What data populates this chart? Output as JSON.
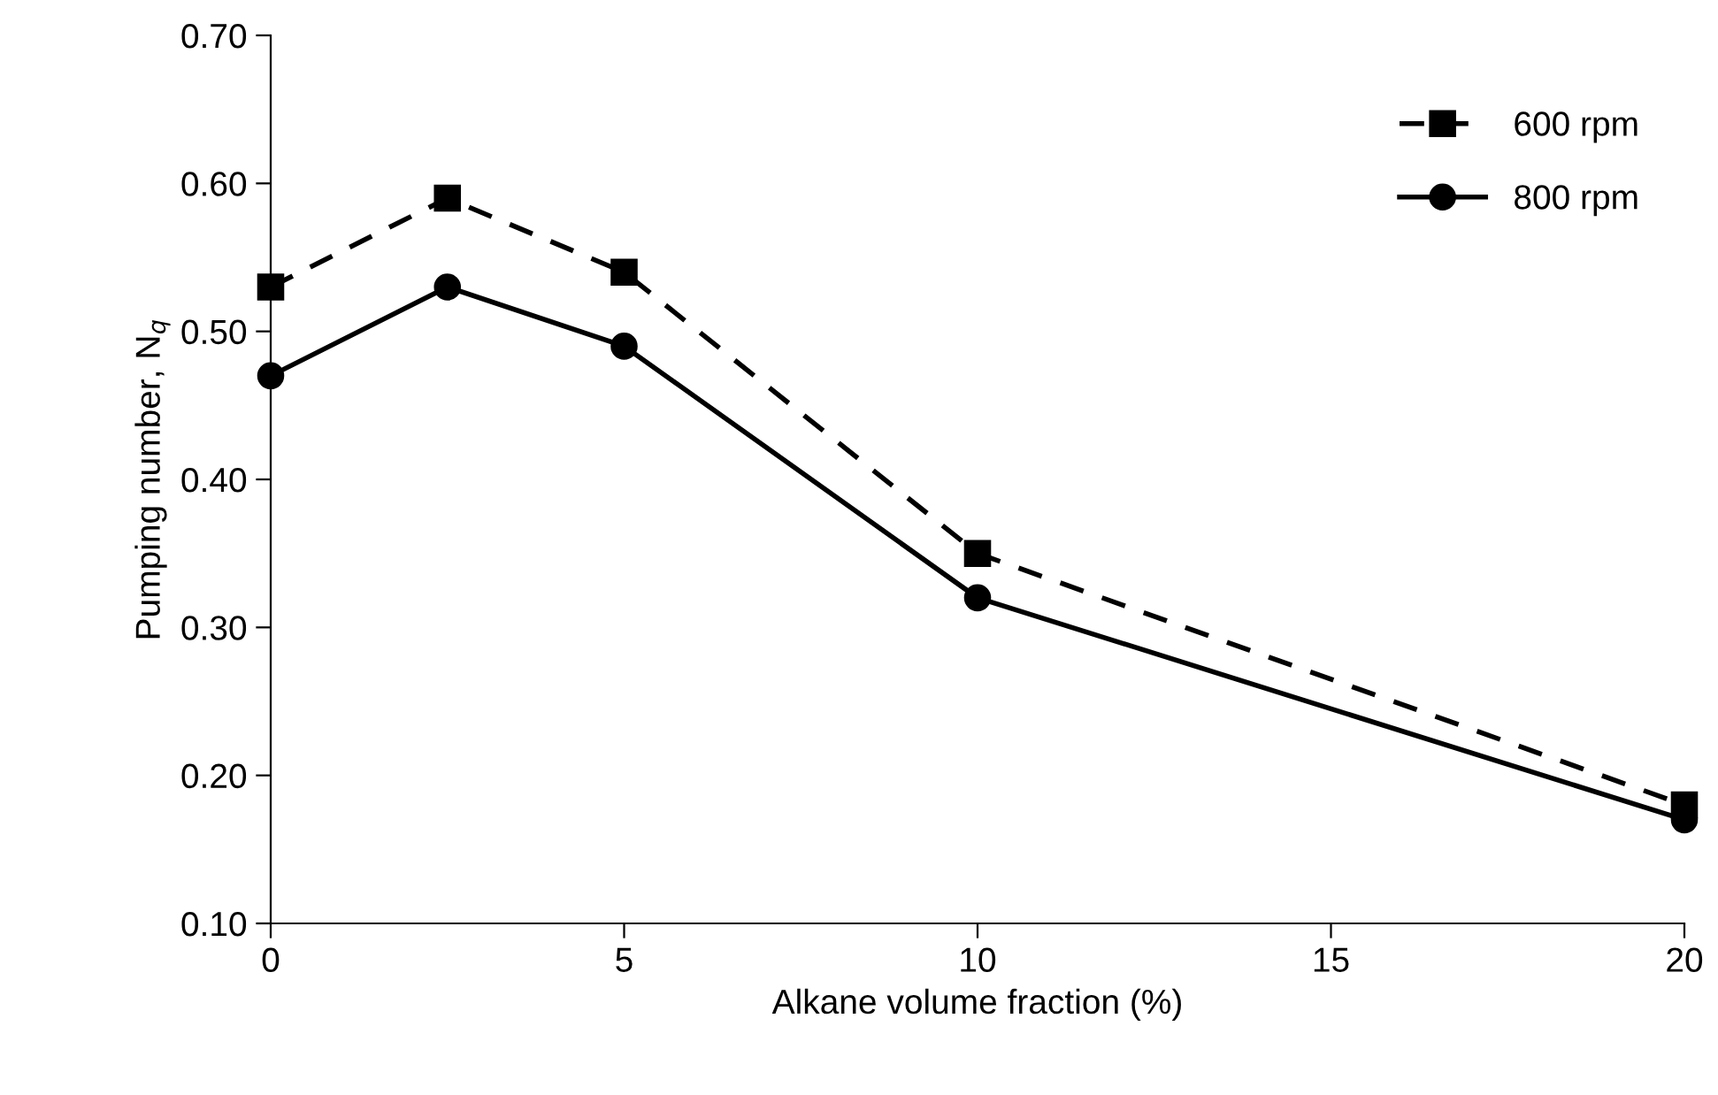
{
  "chart_data": {
    "type": "line",
    "xlabel": "Alkane volume fraction (%)",
    "ylabel": "Pumping number, N$_{q}$",
    "x": [
      0,
      2.5,
      5,
      10,
      20
    ],
    "series": [
      {
        "name": "600 rpm",
        "color": "#000000",
        "marker": "square",
        "line_style": "dashed",
        "values": [
          0.53,
          0.59,
          0.54,
          0.35,
          0.18
        ]
      },
      {
        "name": "800 rpm",
        "color": "#000000",
        "marker": "circle",
        "line_style": "solid",
        "values": [
          0.47,
          0.53,
          0.49,
          0.32,
          0.17
        ]
      }
    ],
    "xlim": [
      0,
      20
    ],
    "xticks": [
      0,
      5,
      10,
      15,
      20
    ],
    "ylim": [
      0.1,
      0.7
    ],
    "yticks": [
      {
        "value": 0.1,
        "label": "0.10"
      },
      {
        "value": 0.2,
        "label": "0.20"
      },
      {
        "value": 0.3,
        "label": "0.30"
      },
      {
        "value": 0.4,
        "label": "0.40"
      },
      {
        "value": 0.5,
        "label": "0.50"
      },
      {
        "value": 0.6,
        "label": "0.60"
      },
      {
        "value": 0.7,
        "label": "0.70"
      }
    ],
    "grid": false,
    "legend": "top right"
  }
}
